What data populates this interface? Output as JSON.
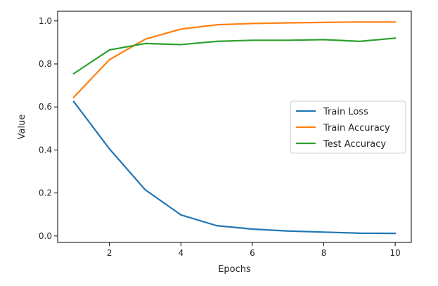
{
  "chart_data": {
    "type": "line",
    "title": "",
    "xlabel": "Epochs",
    "ylabel": "Value",
    "xlim": [
      0.55,
      10.45
    ],
    "ylim": [
      -0.03,
      1.045
    ],
    "xticks": [
      2,
      4,
      6,
      8,
      10
    ],
    "yticks": [
      0.0,
      0.2,
      0.4,
      0.6,
      0.8,
      1.0
    ],
    "grid": false,
    "legend_position": "center-right",
    "x": [
      1,
      2,
      3,
      4,
      5,
      6,
      7,
      8,
      9,
      10
    ],
    "series": [
      {
        "name": "Train Loss",
        "color": "#1f77b4",
        "values": [
          0.625,
          0.405,
          0.215,
          0.098,
          0.048,
          0.032,
          0.023,
          0.018,
          0.013,
          0.012
        ]
      },
      {
        "name": "Train Accuracy",
        "color": "#ff7f0e",
        "values": [
          0.645,
          0.82,
          0.915,
          0.962,
          0.982,
          0.988,
          0.991,
          0.993,
          0.995,
          0.995
        ]
      },
      {
        "name": "Test Accuracy",
        "color": "#2ca02c",
        "values": [
          0.755,
          0.865,
          0.895,
          0.89,
          0.905,
          0.91,
          0.91,
          0.913,
          0.905,
          0.92
        ]
      }
    ]
  }
}
